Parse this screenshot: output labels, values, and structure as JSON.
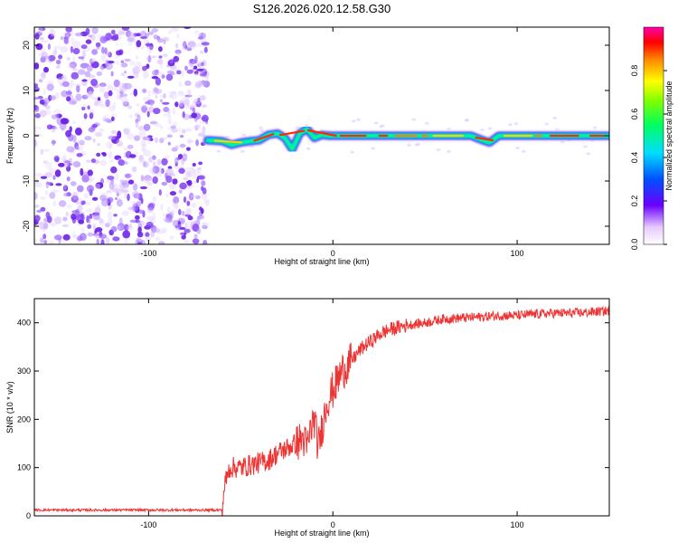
{
  "title": "S126.2026.020.12.58.G30",
  "chart_data": [
    {
      "type": "heatmap",
      "panel": "top",
      "xlabel": "Height of straight line (km)",
      "ylabel": "Frequency (Hz)",
      "xlim": [
        -162,
        150
      ],
      "ylim": [
        -24,
        24
      ],
      "xticks": [
        -100,
        0,
        100
      ],
      "yticks": [
        -20,
        -10,
        0,
        10,
        20
      ],
      "noise_region_x": [
        -162,
        -68
      ],
      "signal_track": {
        "x": [
          -68,
          -60,
          -55,
          -50,
          -45,
          -40,
          -35,
          -30,
          -26,
          -22,
          -18,
          -14,
          -10,
          -6,
          -2,
          0,
          10,
          20,
          30,
          40,
          50,
          60,
          70,
          75,
          80,
          85,
          90,
          100,
          110,
          120,
          130,
          140,
          150
        ],
        "freq": [
          -1.0,
          -1.2,
          -2.0,
          -1.5,
          -1.2,
          -1.0,
          0.2,
          0.5,
          -0.5,
          -3.0,
          0.5,
          1.5,
          -0.5,
          0.2,
          0.0,
          0.0,
          0.0,
          0.0,
          0.0,
          0.0,
          0.0,
          0.0,
          0.0,
          0.0,
          -0.8,
          -1.5,
          0.0,
          0.0,
          0.0,
          0.0,
          0.0,
          0.0,
          0.0
        ]
      },
      "colorbar": {
        "label": "Normalized spectral amplitude",
        "ticks": [
          "0.0",
          "0.2",
          "0.4",
          "0.6",
          "0.8"
        ],
        "range": [
          0,
          1
        ]
      }
    },
    {
      "type": "line",
      "panel": "bottom",
      "xlabel": "Height of straight line (km)",
      "ylabel": "SNR (10 * v/v)",
      "xlim": [
        -162,
        150
      ],
      "ylim": [
        0,
        450
      ],
      "xticks": [
        -100,
        0,
        100
      ],
      "yticks": [
        0,
        100,
        200,
        300,
        400
      ],
      "series": [
        {
          "name": "SNR",
          "color": "#ee3333",
          "x": [
            -162,
            -80,
            -60,
            -59,
            -56,
            -50,
            -45,
            -40,
            -35,
            -30,
            -25,
            -20,
            -16,
            -14,
            -12,
            -10,
            -8,
            -5,
            -3,
            0,
            5,
            10,
            15,
            20,
            25,
            30,
            40,
            50,
            60,
            70,
            80,
            90,
            100,
            110,
            120,
            130,
            140,
            150
          ],
          "y": [
            12,
            12,
            12,
            60,
            100,
            100,
            105,
            110,
            115,
            130,
            140,
            150,
            160,
            140,
            180,
            200,
            140,
            200,
            240,
            260,
            300,
            320,
            345,
            360,
            375,
            385,
            395,
            400,
            408,
            410,
            412,
            415,
            415,
            418,
            420,
            420,
            422,
            425
          ]
        }
      ]
    }
  ]
}
